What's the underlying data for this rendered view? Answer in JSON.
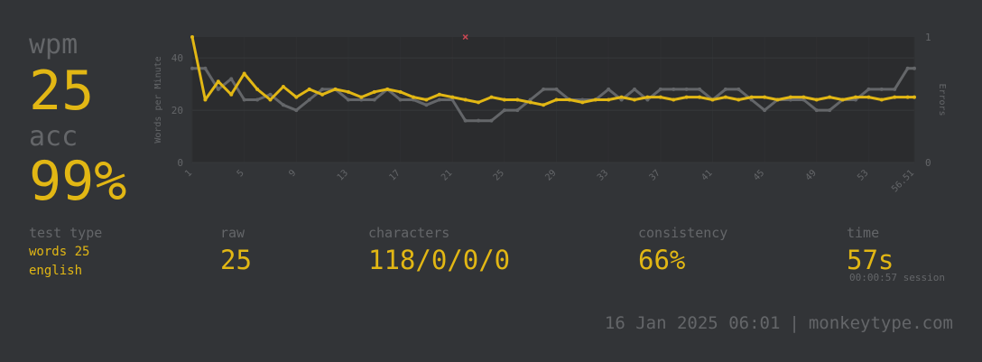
{
  "summary": {
    "wpm_label": "wpm",
    "wpm": "25",
    "acc_label": "acc",
    "acc": "99%"
  },
  "stats": {
    "test_type_label": "test type",
    "test_type_mode": "words 25",
    "test_type_language": "english",
    "raw_label": "raw",
    "raw": "25",
    "characters_label": "characters",
    "characters": "118/0/0/0",
    "consistency_label": "consistency",
    "consistency": "66%",
    "time_label": "time",
    "time": "57s",
    "session": "00:00:57 session"
  },
  "footer": {
    "datetime": "16 Jan 2025 06:01",
    "separator": "|",
    "site": "monkeytype.com"
  },
  "colors": {
    "background": "#323437",
    "accent": "#e2b714",
    "muted": "#646669",
    "plot_area": "#2b2c2e",
    "raw_line": "#646669",
    "error_marker": "#ca4754"
  },
  "chart_data": {
    "type": "line",
    "x_tick_labels": [
      "1",
      "5",
      "9",
      "13",
      "17",
      "21",
      "25",
      "29",
      "33",
      "37",
      "41",
      "45",
      "49",
      "53",
      "56.51"
    ],
    "ylabel": "Words per Minute",
    "y2label": "Errors",
    "ylim": [
      0,
      48
    ],
    "y_ticks": [
      0,
      20,
      40
    ],
    "y2lim": [
      0,
      1
    ],
    "y2_ticks": [
      0,
      1
    ],
    "grid": true,
    "x": [
      1,
      2,
      3,
      4,
      5,
      6,
      7,
      8,
      9,
      10,
      11,
      12,
      13,
      14,
      15,
      16,
      17,
      18,
      19,
      20,
      21,
      22,
      23,
      24,
      25,
      26,
      27,
      28,
      29,
      30,
      31,
      32,
      33,
      34,
      35,
      36,
      37,
      38,
      39,
      40,
      41,
      42,
      43,
      44,
      45,
      46,
      47,
      48,
      49,
      50,
      51,
      52,
      53,
      54,
      55,
      56,
      56.51
    ],
    "series": [
      {
        "name": "wpm",
        "color": "#e2b714",
        "values": [
          48,
          24,
          31,
          26,
          34,
          28,
          24,
          29,
          25,
          28,
          26,
          28,
          27,
          25,
          27,
          28,
          27,
          25,
          24,
          26,
          25,
          24,
          23,
          25,
          24,
          24,
          23,
          22,
          24,
          24,
          23,
          24,
          24,
          25,
          24,
          25,
          25,
          24,
          25,
          25,
          24,
          25,
          24,
          25,
          25,
          24,
          25,
          25,
          24,
          25,
          24,
          25,
          25,
          24,
          25,
          25,
          25
        ]
      },
      {
        "name": "raw",
        "color": "#646669",
        "values": [
          36,
          36,
          28,
          32,
          24,
          24,
          26,
          22,
          20,
          24,
          28,
          28,
          24,
          24,
          24,
          28,
          24,
          24,
          22,
          24,
          24,
          16,
          16,
          16,
          20,
          20,
          24,
          28,
          28,
          24,
          24,
          24,
          28,
          24,
          28,
          24,
          28,
          28,
          28,
          28,
          24,
          28,
          28,
          24,
          20,
          24,
          24,
          24,
          20,
          20,
          24,
          24,
          28,
          28,
          28,
          36,
          36
        ]
      }
    ],
    "errors": [
      {
        "x": 22,
        "count": 1
      }
    ]
  }
}
